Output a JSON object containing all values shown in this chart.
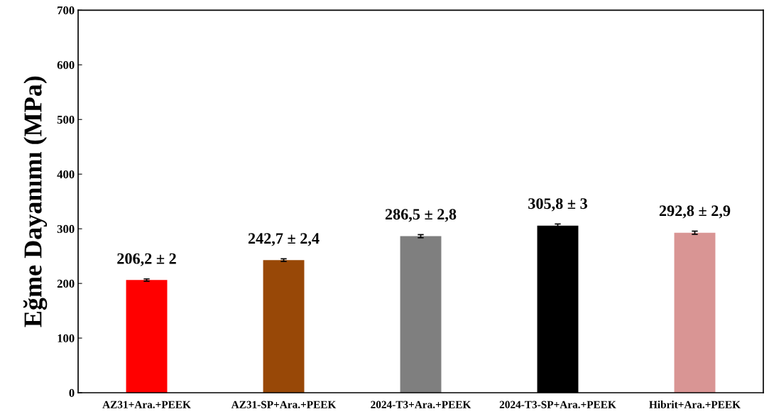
{
  "chart_data": {
    "type": "bar",
    "ylabel": "Eğme Dayanımı (MPa)",
    "categories": [
      "AZ31+Ara.+PEEK",
      "AZ31-SP+Ara.+PEEK",
      "2024-T3+Ara.+PEEK",
      "2024-T3-SP+Ara.+PEEK",
      "Hibrit+Ara.+PEEK"
    ],
    "values": [
      206.2,
      242.7,
      286.5,
      305.8,
      292.8
    ],
    "errors": [
      2,
      2.4,
      2.8,
      3,
      2.9
    ],
    "value_labels": [
      "206,2 ± 2",
      "242,7 ± 2,4",
      "286,5 ± 2,8",
      "305,8 ± 3",
      "292,8 ± 2,9"
    ],
    "colors": [
      "#ff0000",
      "#984807",
      "#7f7f7f",
      "#000000",
      "#d99594"
    ],
    "ylim": [
      0,
      700
    ],
    "yticks": [
      0,
      100,
      200,
      300,
      400,
      500,
      600,
      700
    ],
    "grid": false,
    "legend": false
  }
}
